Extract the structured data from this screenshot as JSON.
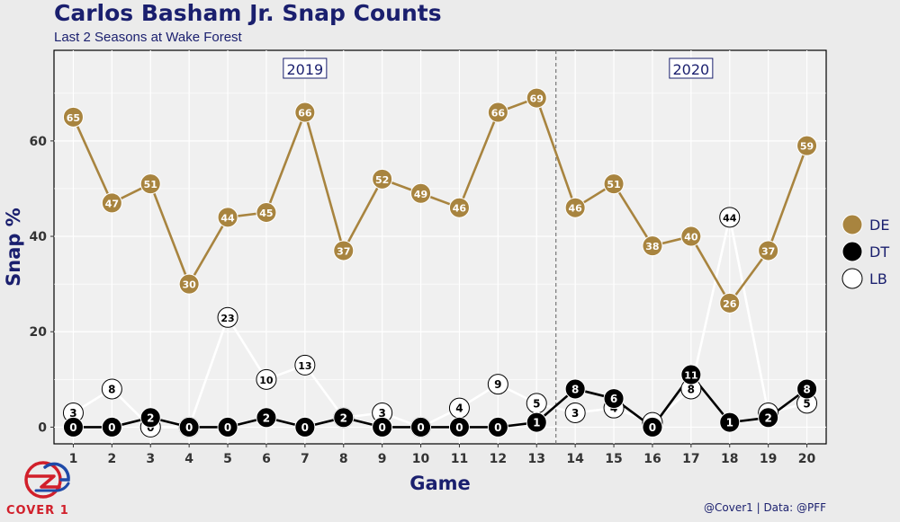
{
  "header": {
    "title": "Carlos Basham Jr. Snap Counts",
    "subtitle": "Last 2 Seasons at Wake Forest"
  },
  "footer": {
    "logo_text": "COVER 1",
    "credit": "@Cover1  |  Data: @PFF"
  },
  "colors": {
    "DE": "#a8843f",
    "DT": "#000000",
    "LB": "#ffffff",
    "title": "#1a1f6e",
    "panel": "#f0f0f0",
    "brand_red": "#d11f2a",
    "brand_blue": "#1f4aa8"
  },
  "chart_data": {
    "type": "line",
    "title": "Carlos Basham Jr. Snap Counts",
    "subtitle": "Last 2 Seasons at Wake Forest",
    "xlabel": "Game",
    "ylabel": "Snap %",
    "x": [
      1,
      2,
      3,
      4,
      5,
      6,
      7,
      8,
      9,
      10,
      11,
      12,
      13,
      14,
      15,
      16,
      17,
      18,
      19,
      20
    ],
    "xlim": [
      0.5,
      20.5
    ],
    "ylim": [
      -3.5,
      79
    ],
    "yticks": [
      0,
      20,
      40,
      60
    ],
    "grid": true,
    "legend_position": "right",
    "season_divider_x": 13.5,
    "season_labels": [
      {
        "label": "2019",
        "x": 7
      },
      {
        "label": "2020",
        "x": 17
      }
    ],
    "series": [
      {
        "name": "DE",
        "values": [
          65,
          47,
          51,
          30,
          44,
          45,
          66,
          37,
          52,
          49,
          46,
          66,
          69,
          46,
          51,
          38,
          40,
          26,
          37,
          59
        ]
      },
      {
        "name": "DT",
        "values": [
          0,
          0,
          2,
          0,
          0,
          2,
          0,
          2,
          0,
          0,
          0,
          0,
          1,
          8,
          6,
          0,
          11,
          1,
          2,
          8
        ]
      },
      {
        "name": "LB",
        "values": [
          3,
          8,
          0,
          0,
          23,
          10,
          13,
          2,
          3,
          0,
          4,
          9,
          5,
          3,
          4,
          1,
          8,
          44,
          3,
          5
        ]
      }
    ]
  }
}
